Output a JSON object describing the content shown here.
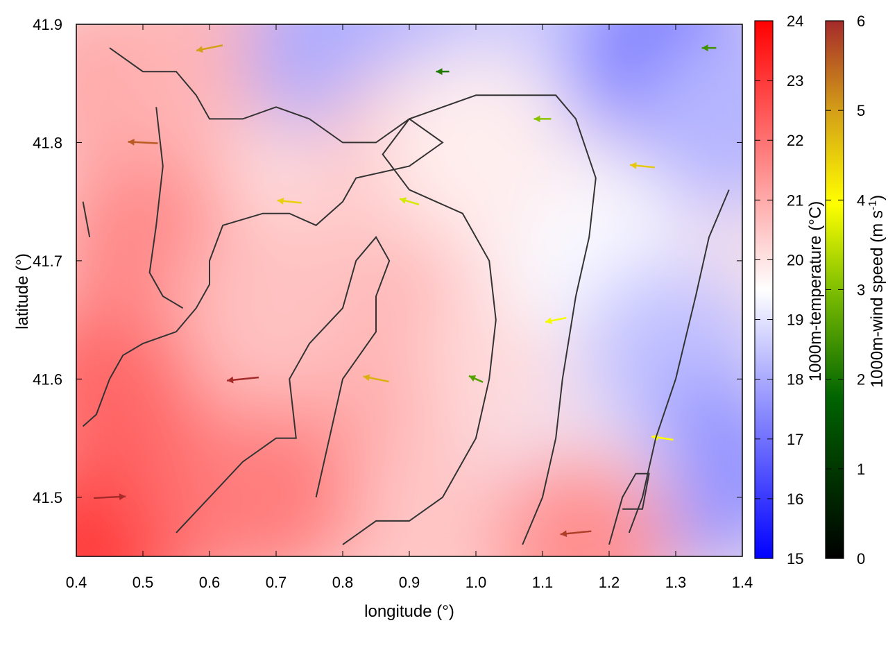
{
  "chart_data": {
    "type": "heatmap",
    "overlay": "wind-vector-field-with-contours",
    "xlabel": "longitude (°)",
    "ylabel": "latitude (°)",
    "xlim": [
      0.4,
      1.4
    ],
    "ylim": [
      41.45,
      41.9
    ],
    "x_ticks": [
      "0.4",
      "0.5",
      "0.6",
      "0.7",
      "0.8",
      "0.9",
      "1.0",
      "1.1",
      "1.2",
      "1.3",
      "1.4"
    ],
    "x_tick_values": [
      0.4,
      0.5,
      0.6,
      0.7,
      0.8,
      0.9,
      1.0,
      1.1,
      1.2,
      1.3,
      1.4
    ],
    "y_ticks": [
      "41.5",
      "41.6",
      "41.7",
      "41.8",
      "41.9"
    ],
    "y_tick_values": [
      41.5,
      41.6,
      41.7,
      41.8,
      41.9
    ],
    "grid": false,
    "temperature_colorbar": {
      "label": "1000m-temperature (°C)",
      "range": [
        15,
        24
      ],
      "ticks": [
        "15",
        "16",
        "17",
        "18",
        "19",
        "20",
        "21",
        "22",
        "23",
        "24"
      ],
      "tick_values": [
        15,
        16,
        17,
        18,
        19,
        20,
        21,
        22,
        23,
        24
      ],
      "colors": [
        "#0000ff",
        "#ffffff",
        "#ff0000"
      ]
    },
    "wind_colorbar": {
      "label_main": "1000m-wind speed (m s",
      "label_sup": "-1",
      "label_end": ")",
      "range": [
        0,
        6
      ],
      "ticks": [
        "0",
        "1",
        "2",
        "3",
        "4",
        "5",
        "6"
      ],
      "tick_values": [
        0,
        1,
        2,
        3,
        4,
        5,
        6
      ],
      "colors": [
        "#000000",
        "#006400",
        "#7fbf00",
        "#ffff00",
        "#d4a017",
        "#a52a2a"
      ]
    },
    "temperature_field": [
      {
        "lon": 0.45,
        "lat": 41.47,
        "value": 23.5
      },
      {
        "lon": 0.55,
        "lat": 41.5,
        "value": 22.6
      },
      {
        "lon": 0.45,
        "lat": 41.6,
        "value": 22.2
      },
      {
        "lon": 0.5,
        "lat": 41.72,
        "value": 21.6
      },
      {
        "lon": 0.45,
        "lat": 41.85,
        "value": 21.0
      },
      {
        "lon": 0.62,
        "lat": 41.88,
        "value": 20.8
      },
      {
        "lon": 0.8,
        "lat": 41.88,
        "value": 18.0
      },
      {
        "lon": 0.95,
        "lat": 41.88,
        "value": 18.2
      },
      {
        "lon": 1.1,
        "lat": 41.87,
        "value": 18.5
      },
      {
        "lon": 1.3,
        "lat": 41.87,
        "value": 17.0
      },
      {
        "lon": 1.38,
        "lat": 41.82,
        "value": 18.2
      },
      {
        "lon": 0.9,
        "lat": 41.78,
        "value": 20.5
      },
      {
        "lon": 0.9,
        "lat": 41.62,
        "value": 21.0
      },
      {
        "lon": 0.78,
        "lat": 41.55,
        "value": 21.0
      },
      {
        "lon": 1.05,
        "lat": 41.62,
        "value": 20.2
      },
      {
        "lon": 1.18,
        "lat": 41.7,
        "value": 19.4
      },
      {
        "lon": 1.3,
        "lat": 41.62,
        "value": 18.4
      },
      {
        "lon": 1.35,
        "lat": 41.52,
        "value": 17.6
      },
      {
        "lon": 1.15,
        "lat": 41.5,
        "value": 19.2
      },
      {
        "lon": 1.15,
        "lat": 41.46,
        "value": 21.5
      },
      {
        "lon": 0.9,
        "lat": 41.47,
        "value": 20.5
      },
      {
        "lon": 0.68,
        "lat": 41.5,
        "value": 21.8
      },
      {
        "lon": 0.7,
        "lat": 41.66,
        "value": 20.6
      },
      {
        "lon": 1.0,
        "lat": 41.8,
        "value": 19.8
      }
    ],
    "wind_field": [
      {
        "lon": 0.45,
        "lat": 41.5,
        "speed": 6.0,
        "u": 1.0,
        "v": 0.05
      },
      {
        "lon": 0.5,
        "lat": 41.8,
        "speed": 5.5,
        "u": -1.0,
        "v": 0.05
      },
      {
        "lon": 0.65,
        "lat": 41.6,
        "speed": 6.0,
        "u": -1.0,
        "v": -0.1
      },
      {
        "lon": 0.72,
        "lat": 41.75,
        "speed": 4.2,
        "u": -1.0,
        "v": 0.1
      },
      {
        "lon": 0.85,
        "lat": 41.6,
        "speed": 4.6,
        "u": -1.0,
        "v": 0.2
      },
      {
        "lon": 0.9,
        "lat": 41.75,
        "speed": 3.2,
        "u": -1.0,
        "v": 0.3
      },
      {
        "lon": 0.95,
        "lat": 41.86,
        "speed": 1.5,
        "u": -1.0,
        "v": 0.0
      },
      {
        "lon": 1.0,
        "lat": 41.6,
        "speed": 2.0,
        "u": -0.9,
        "v": 0.4
      },
      {
        "lon": 1.1,
        "lat": 41.82,
        "speed": 2.5,
        "u": -1.0,
        "v": 0.0
      },
      {
        "lon": 1.12,
        "lat": 41.65,
        "speed": 3.5,
        "u": -1.0,
        "v": -0.2
      },
      {
        "lon": 1.25,
        "lat": 41.78,
        "speed": 4.3,
        "u": -1.0,
        "v": 0.1
      },
      {
        "lon": 1.28,
        "lat": 41.55,
        "speed": 3.6,
        "u": -1.0,
        "v": 0.15
      },
      {
        "lon": 1.15,
        "lat": 41.47,
        "speed": 5.8,
        "u": -1.0,
        "v": -0.1
      },
      {
        "lon": 1.35,
        "lat": 41.88,
        "speed": 1.8,
        "u": -1.0,
        "v": 0.0
      },
      {
        "lon": 0.6,
        "lat": 41.88,
        "speed": 4.8,
        "u": -1.0,
        "v": -0.2
      }
    ],
    "contours": [
      [
        [
          0.41,
          41.75
        ],
        [
          0.42,
          41.72
        ]
      ],
      [
        [
          0.45,
          41.88
        ],
        [
          0.5,
          41.86
        ],
        [
          0.55,
          41.86
        ],
        [
          0.58,
          41.84
        ],
        [
          0.6,
          41.82
        ],
        [
          0.65,
          41.82
        ],
        [
          0.7,
          41.83
        ],
        [
          0.75,
          41.82
        ],
        [
          0.8,
          41.8
        ],
        [
          0.85,
          41.8
        ],
        [
          0.9,
          41.82
        ],
        [
          0.95,
          41.8
        ],
        [
          0.9,
          41.78
        ],
        [
          0.82,
          41.77
        ],
        [
          0.8,
          41.75
        ],
        [
          0.76,
          41.73
        ],
        [
          0.72,
          41.74
        ],
        [
          0.68,
          41.74
        ],
        [
          0.62,
          41.73
        ],
        [
          0.6,
          41.7
        ],
        [
          0.6,
          41.68
        ],
        [
          0.58,
          41.66
        ],
        [
          0.55,
          41.64
        ],
        [
          0.5,
          41.63
        ],
        [
          0.47,
          41.62
        ],
        [
          0.45,
          41.6
        ],
        [
          0.43,
          41.57
        ],
        [
          0.41,
          41.56
        ]
      ],
      [
        [
          0.52,
          41.83
        ],
        [
          0.53,
          41.78
        ],
        [
          0.52,
          41.73
        ],
        [
          0.51,
          41.69
        ],
        [
          0.53,
          41.67
        ],
        [
          0.56,
          41.66
        ]
      ],
      [
        [
          0.55,
          41.47
        ],
        [
          0.6,
          41.5
        ],
        [
          0.65,
          41.53
        ],
        [
          0.7,
          41.55
        ],
        [
          0.73,
          41.55
        ],
        [
          0.72,
          41.6
        ],
        [
          0.75,
          41.63
        ],
        [
          0.8,
          41.66
        ],
        [
          0.82,
          41.7
        ],
        [
          0.85,
          41.72
        ],
        [
          0.87,
          41.7
        ],
        [
          0.85,
          41.67
        ],
        [
          0.85,
          41.64
        ],
        [
          0.8,
          41.6
        ],
        [
          0.78,
          41.55
        ],
        [
          0.76,
          41.5
        ]
      ],
      [
        [
          0.8,
          41.46
        ],
        [
          0.85,
          41.48
        ],
        [
          0.9,
          41.48
        ],
        [
          0.95,
          41.5
        ],
        [
          1.0,
          41.55
        ],
        [
          1.02,
          41.6
        ],
        [
          1.03,
          41.65
        ],
        [
          1.02,
          41.7
        ],
        [
          0.98,
          41.74
        ],
        [
          0.9,
          41.76
        ],
        [
          0.86,
          41.79
        ],
        [
          0.9,
          41.82
        ],
        [
          0.95,
          41.83
        ],
        [
          1.0,
          41.84
        ],
        [
          1.05,
          41.84
        ],
        [
          1.12,
          41.84
        ],
        [
          1.15,
          41.82
        ],
        [
          1.18,
          41.77
        ],
        [
          1.17,
          41.72
        ],
        [
          1.15,
          41.67
        ],
        [
          1.13,
          41.6
        ],
        [
          1.12,
          41.55
        ],
        [
          1.1,
          41.5
        ],
        [
          1.07,
          41.46
        ]
      ],
      [
        [
          1.2,
          41.46
        ],
        [
          1.22,
          41.5
        ],
        [
          1.24,
          41.52
        ],
        [
          1.26,
          41.52
        ],
        [
          1.25,
          41.49
        ],
        [
          1.22,
          41.49
        ]
      ],
      [
        [
          1.38,
          41.76
        ],
        [
          1.35,
          41.72
        ],
        [
          1.33,
          41.67
        ],
        [
          1.3,
          41.6
        ],
        [
          1.27,
          41.55
        ],
        [
          1.25,
          41.5
        ],
        [
          1.23,
          41.47
        ]
      ]
    ]
  }
}
